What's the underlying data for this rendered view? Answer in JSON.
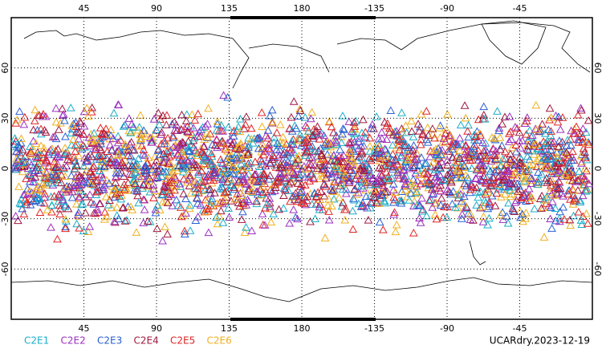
{
  "map": {
    "lon_ticks": [
      45,
      90,
      135,
      180,
      -135,
      -90,
      -45
    ],
    "lat_ticks": [
      -60,
      -30,
      0,
      30,
      60
    ],
    "legend": [
      {
        "name": "C2E1",
        "color": "#1aaec8"
      },
      {
        "name": "C2E2",
        "color": "#9b30c0"
      },
      {
        "name": "C2E3",
        "color": "#2a60d0"
      },
      {
        "name": "C2E4",
        "color": "#a01840"
      },
      {
        "name": "C2E5",
        "color": "#e02424"
      },
      {
        "name": "C2E6",
        "color": "#f0b020"
      }
    ],
    "footer": "UCARdry.2023-12-19"
  }
}
